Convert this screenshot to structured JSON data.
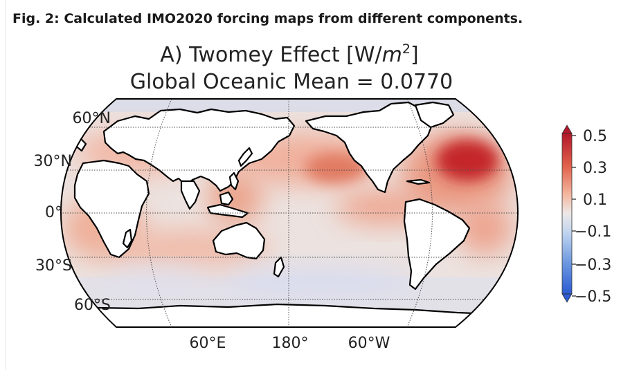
{
  "caption": "Fig. 2: Calculated IMO2020 forcing maps from different components.",
  "map": {
    "title_main": "A) Twomey Effect [W/",
    "title_unit_var": "m",
    "title_unit_exp": "2",
    "title_close": "]",
    "subtitle": "Global Oceanic Mean = 0.0770",
    "lat_labels": [
      "60°N",
      "30°N",
      "0°",
      "30°S",
      "60°S"
    ],
    "lon_labels": [
      "60°E",
      "180°",
      "60°W"
    ]
  },
  "colorbar": {
    "ticks": [
      "0.5",
      "0.3",
      "0.1",
      "−0.1",
      "−0.3",
      "−0.5"
    ],
    "colors": {
      "max": "#b2182b",
      "mid_high": "#e58267",
      "neutral": "#e8e4e4",
      "mid_low": "#8fb3e0",
      "min": "#2c5bd2"
    }
  },
  "chart_data": {
    "type": "heatmap",
    "title": "A) Twomey Effect [W/m²]",
    "subtitle": "Global Oceanic Mean = 0.0770",
    "projection": "Robinson, centered on 180°",
    "global_oceanic_mean": 0.077,
    "colorbar_range": [
      -0.5,
      0.5
    ],
    "colorbar_ticks": [
      0.5,
      0.3,
      0.1,
      -0.1,
      -0.3,
      -0.5
    ],
    "hotspots": [
      {
        "region": "North Atlantic",
        "value": 0.5
      },
      {
        "region": "North Pacific",
        "value": 0.3
      },
      {
        "region": "Indian Ocean / Arabian Sea",
        "value": 0.2
      },
      {
        "region": "East Pacific / Gulf of Panama",
        "value": 0.25
      },
      {
        "region": "Southern Ocean",
        "value": -0.05
      }
    ]
  }
}
